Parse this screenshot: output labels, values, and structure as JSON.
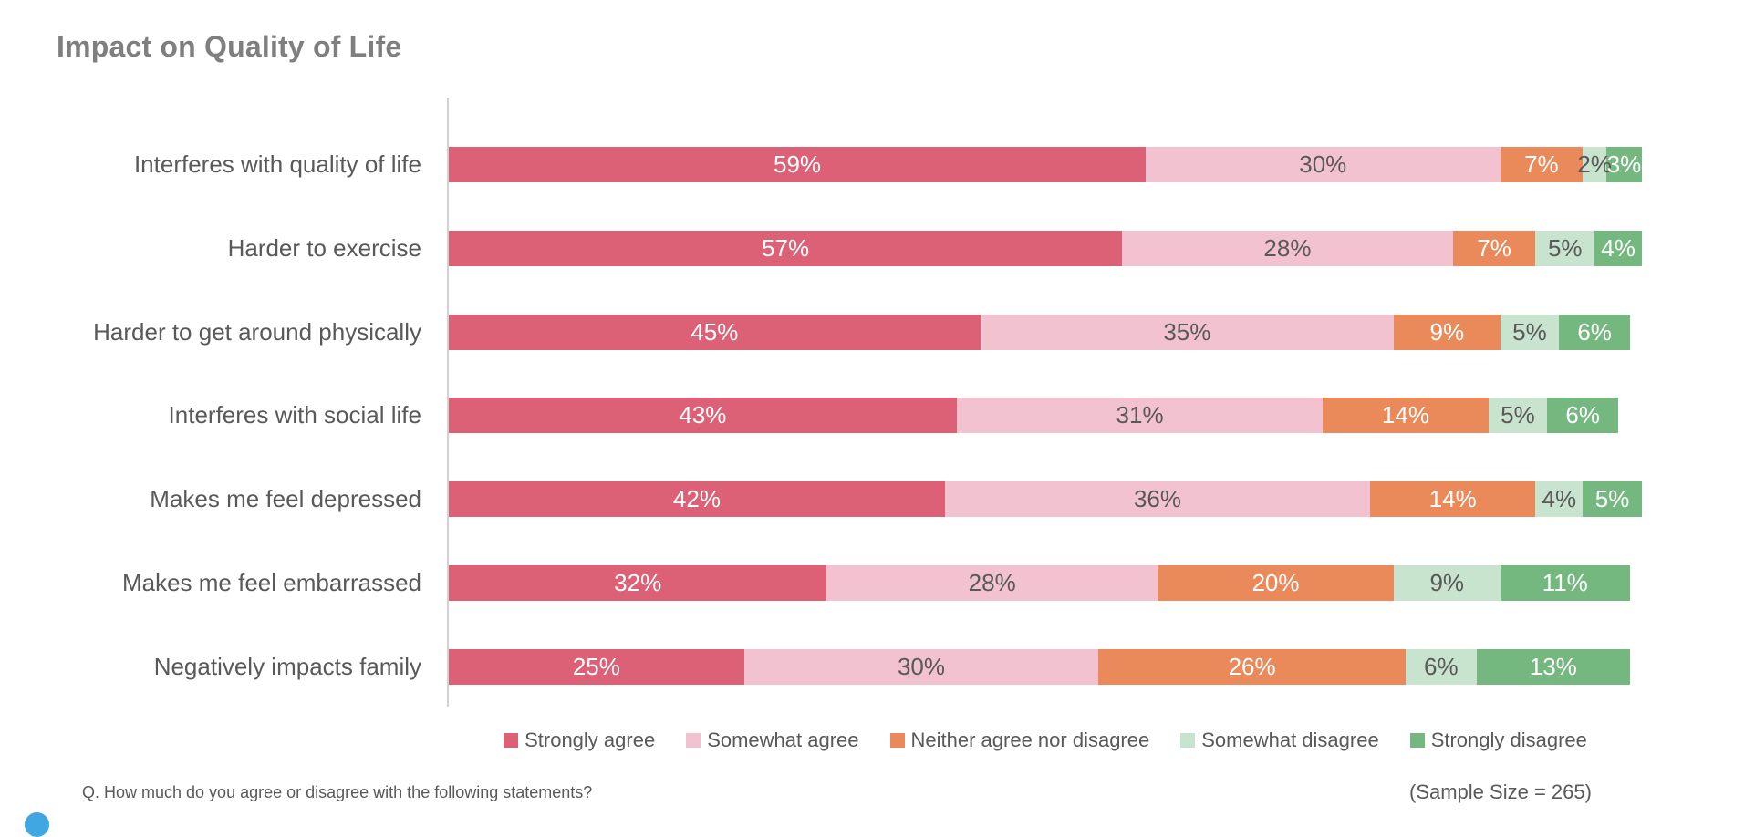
{
  "title": "Impact on Quality of Life",
  "footnote": "Q. How much do you agree or disagree with the following statements?",
  "sample_size": "(Sample Size = 265)",
  "logo_color": "#41a7e3",
  "chart_data": {
    "type": "bar",
    "orientation": "horizontal",
    "stacked": true,
    "value_suffix": "%",
    "xlim": [
      0,
      100
    ],
    "grid": false,
    "legend_position": "bottom",
    "categories": [
      "Interferes with quality of life",
      "Harder to exercise",
      "Harder to get around physically",
      "Interferes with social life",
      "Makes me feel depressed",
      "Makes me feel embarrassed",
      "Negatively impacts family"
    ],
    "series": [
      {
        "name": "Strongly agree",
        "color": "#dc6177",
        "text_color": "#ffffff",
        "values": [
          59,
          57,
          45,
          43,
          42,
          32,
          25
        ]
      },
      {
        "name": "Somewhat agree",
        "color": "#f2c2d0",
        "text_color": "#595959",
        "values": [
          30,
          28,
          35,
          31,
          36,
          28,
          30
        ]
      },
      {
        "name": "Neither agree nor disagree",
        "color": "#ea8a5b",
        "text_color": "#ffffff",
        "values": [
          7,
          7,
          9,
          14,
          14,
          20,
          26
        ]
      },
      {
        "name": "Somewhat disagree",
        "color": "#c8e3ce",
        "text_color": "#595959",
        "values": [
          2,
          5,
          5,
          5,
          4,
          9,
          6
        ]
      },
      {
        "name": "Strongly disagree",
        "color": "#74b880",
        "text_color": "#ffffff",
        "values": [
          3,
          4,
          6,
          6,
          5,
          11,
          13
        ]
      }
    ]
  }
}
